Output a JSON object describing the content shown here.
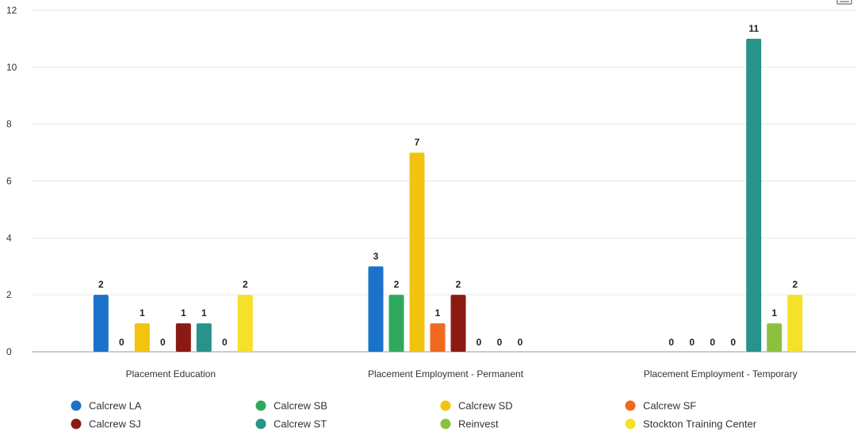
{
  "chart_data": {
    "type": "bar",
    "title": "",
    "xlabel": "",
    "ylabel": "",
    "ylim": [
      0,
      12
    ],
    "yticks": [
      0,
      2,
      4,
      6,
      8,
      10,
      12
    ],
    "grid": true,
    "legend_position": "bottom",
    "categories": [
      "Placement Education",
      "Placement Employment - Permanent",
      "Placement Employment - Temporary"
    ],
    "series": [
      {
        "name": "Calcrew LA",
        "color": "#1a73c8",
        "values": [
          2,
          3,
          null
        ]
      },
      {
        "name": "Calcrew SB",
        "color": "#2eaa5c",
        "values": [
          0,
          2,
          0
        ]
      },
      {
        "name": "Calcrew SD",
        "color": "#f2c40f",
        "values": [
          1,
          7,
          0
        ]
      },
      {
        "name": "Calcrew SF",
        "color": "#ef6a1f",
        "values": [
          0,
          1,
          0
        ]
      },
      {
        "name": "Calcrew SJ",
        "color": "#8b1a14",
        "values": [
          1,
          2,
          0
        ]
      },
      {
        "name": "Calcrew ST",
        "color": "#27938a",
        "values": [
          1,
          0,
          11
        ]
      },
      {
        "name": "Reinvest",
        "color": "#8cc13f",
        "values": [
          0,
          0,
          1
        ]
      },
      {
        "name": "Stockton Training Center",
        "color": "#f5e12a",
        "values": [
          2,
          0,
          2
        ]
      }
    ]
  },
  "toolbar": {
    "menu_icon": "hamburger-menu-icon"
  }
}
